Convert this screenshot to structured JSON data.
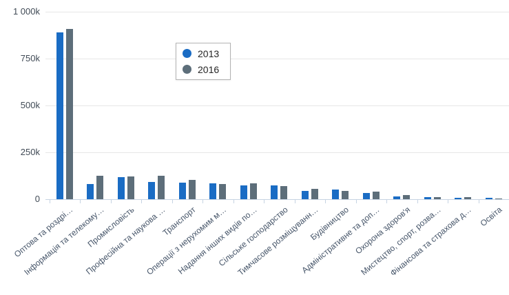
{
  "chart_data": {
    "type": "bar",
    "title": "",
    "xlabel": "",
    "ylabel": "",
    "values_unit": "thousands (k)",
    "ylim_k": [
      0,
      1000
    ],
    "grid": true,
    "legend_position": "inside-top-left-box",
    "y_ticks": [
      {
        "label": "1 000k",
        "value_k": 1000
      },
      {
        "label": "750k",
        "value_k": 750
      },
      {
        "label": "500k",
        "value_k": 500
      },
      {
        "label": "250k",
        "value_k": 250
      },
      {
        "label": "0",
        "value_k": 0
      }
    ],
    "categories": [
      "Оптова та роздрі…",
      "Інформація та телекому…",
      "Промисловість",
      "Професійна та наукова …",
      "Транспорт",
      "Операції з нерухомим м…",
      "Надання інших видів по…",
      "Сільське господарство",
      "Тимчасове розміщуванн…",
      "Будівництво",
      "Адміністративне та доп…",
      "Охорона здоров'я",
      "Мистецтво, спорт, розва…",
      "Фінансова та страхова д…",
      "Освіта"
    ],
    "series": [
      {
        "name": "2013",
        "color": "#1a6cc4",
        "values_k": [
          890,
          80,
          117,
          92,
          88,
          86,
          74,
          72,
          44,
          53,
          33,
          16,
          13,
          7,
          8
        ]
      },
      {
        "name": "2016",
        "color": "#5d6e7a",
        "values_k": [
          910,
          127,
          122,
          124,
          104,
          82,
          85,
          70,
          56,
          43,
          42,
          22,
          11,
          11,
          5
        ]
      }
    ]
  },
  "colors": {
    "background": "#ffffff",
    "gridline": "#e6e6e6",
    "axis_line": "#c6d3e2",
    "y_label_text": "#404a55",
    "x_label_text": "#47566a",
    "legend_text": "#252525",
    "legend_border": "#b3b3b3",
    "series_2013": "#1a6cc4",
    "series_2016": "#5d6e7a"
  }
}
